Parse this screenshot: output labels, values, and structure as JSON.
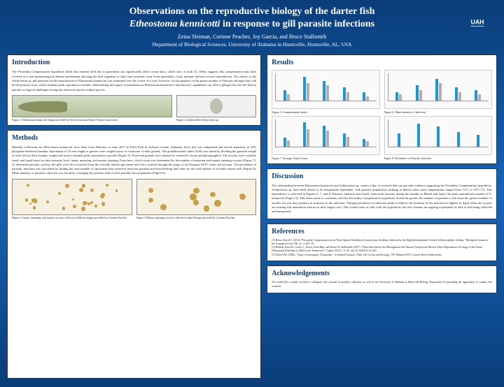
{
  "header": {
    "title_line1": "Observations on the reproductive biology of the darter fish",
    "title_species": "Etheostoma kennicotti",
    "title_line2_suffix": " in response to gill parasite infections",
    "authors": "Zeina Sleiman, Corinne Peacher, Joy Garcia, and Bruce Stallsmith",
    "dept": "Department of Biological Sciences, University of Alabama in Huntsville, Huntsville, AL, USA"
  },
  "intro": {
    "heading": "Introduction",
    "body": "The Fecundity Compensation hypothesis holds that nutrient theft due to parasitism can significantly affect ovum mass, clutch size, or both [1]. Heins suggests this compensation may have evolved as a non-immunological defense mechanism allowing the host organism to shift vital nutrients away from potentially costly immune defense toward reproduction. The effects of the Aethycteron sp. gill parasites on the reproduction of Etheostoma kennicotti was examined over the course of a year; however, for the purpose of this poster months of February through June will be the primary focus which includes peak reproductive months. Determining the impact of parasitism on Etheostoma kennicotti's reproductive capabilities can offer a glimpse into the life history and the ecological challenges facing this otherwise poorly studied species.",
    "fig1_caption": "Figure 1 Etheostoma kennicotti Image provided by North American Native Fishes Association",
    "fig2_caption": "Figure 2 Undescribed Aethycteron sp."
  },
  "methods": {
    "heading": "Methods",
    "body": "Monthly collections for Etheostoma kennicotti were done from February to June 2017 at Estill Fork in Jackson County, Alabama. Each fish was euthanized and stored separately in 10% phosphate-buffered formalin. Specimens of 25 mm length or greater were weighed prior to extraction of their gonads. The gonadosomatic index (GSI) was found by dividing the gonadal weight of each fish by their somatic weight and used to identify peak reproductive periods (Figure 5). Extracted gonads were cleaned of connective tissue and photographed. The oocytes were counted, sized, and typed based on their maturity level: latent, maturing, and mature ripening. From here, clutch count was determined by the number of maturing and mature ripening oocytes (Figure 7). To determine parasitic activity, the gills were first extracted from the sexually mature specimens and were counted through the usage of an Olympus SZX7 stereo microscope. The prevalence of parasitic infection was calculated by finding the total number of specimens that carried at least one parasite and then dividing that value by the total number of sexually mature fish (Figure 8). Mean intensity of parasitic infection was found by averaging the parasite load of each monthly host population (Figure 6).",
    "fig3_caption": "Figure 3 Latent, maturing, and mature oocytes collected in March Image provided by Corinne Peacher",
    "fig4_caption": "Figure 4 Mature ripening oocytes collected in April Image provided by Corinne Peacher"
  },
  "results": {
    "heading": "Results",
    "fig5": {
      "caption": "Figure 5: Gonadosomatic Index",
      "type": "bar",
      "categories": [
        "Feb",
        "Mar",
        "Apr",
        "May",
        "Jun"
      ],
      "series_a": [
        5,
        11,
        9,
        6,
        4
      ],
      "series_b": [
        3,
        8,
        7,
        4,
        2
      ],
      "color_a": "#2196d4",
      "color_b": "#b0b0b0",
      "ylim": [
        0,
        12
      ]
    },
    "fig6": {
      "caption": "Figure 6: Mean Intensity of Infection",
      "type": "bar",
      "categories": [
        "Feb",
        "Mar",
        "Apr",
        "May",
        "Jun"
      ],
      "series_a": [
        4,
        7,
        10,
        6,
        5
      ],
      "series_b": [
        3,
        5,
        8,
        4,
        3
      ],
      "color_a": "#2196d4",
      "color_b": "#b0b0b0",
      "ylim": [
        0,
        12
      ]
    },
    "fig7": {
      "caption": "Figure 7: Average Clutch Count",
      "type": "bar",
      "categories": [
        "Feb",
        "Mar",
        "Apr",
        "May",
        "Jun"
      ],
      "series_a": [
        20,
        55,
        48,
        30,
        18
      ],
      "series_b": [
        14,
        40,
        36,
        22,
        12
      ],
      "color_a": "#2196d4",
      "color_b": "#b0b0b0",
      "ylim": [
        0,
        60
      ]
    },
    "fig8": {
      "caption": "Figure 8: Prevalence of Parasitic Infection",
      "type": "bar",
      "categories": [
        "Feb",
        "Mar",
        "Apr",
        "May",
        "Jun"
      ],
      "series_a": [
        40,
        70,
        60,
        45,
        35
      ],
      "color_a": "#2196d4",
      "ylim": [
        0,
        80
      ]
    }
  },
  "discussion": {
    "heading": "Discussion",
    "body": "The relationship between Etheostoma kennicotti and Aethycteron sp. creates a line of research that can provide evidence supporting the Fecundity Compensation hypothesis. Aethycteron sp. have been shown to be temperature dependent, with parasite populations peaking in March when water temperatures ranged from 14°C to 20°C [3]. This dependence is reflected in Figures 6, 7, and 8. Parasitic intensity and clutch count both increase during the months of March and April, the peak reproductive months of E. kennicotti (Figure 5). This observation is consistent with the Fecundity Compensation hypothesis in that the greater the number of parasites a fish hosts the greater number of smaller oocytes they produce in response to the infection. Though prevalence of infection peaks in March, the intensity of the infection is highest in April when the oocytes are nearing full maturation and are at their largest size. This would seem at odds with the hypothesis, but this remains an ongoing experiment as data is still being collected and interpreted."
  },
  "refs": {
    "heading": "References",
    "r1": "[1] Heins, David C. (2012) \"Fecundity Compensation in the Three-Spined Stickleback Gasterosteus Aculeatus Infected by the Diphyllobothriidean Cestode Schistocephalus Solidus.\" Biological Journal of the Linnean Society 106, no. 4: 807–19.",
    "r2": "[2] Hollion, Kara M., Crissy L. Tarver, Sean Hipe, and Bruce W. Stallsmith. (2017). \"Does Infection by the Monogenean Gill Parasite Aethycteron Moorei Affect Reproductive Ecology of the Darter Etheostoma Flabellare in Mill Creek, Tennessee?\" Copeia 105 (1): 75–81. doi:10.1643/CE-16-403.",
    "r3": "[3] Olsen OW. (1980). \"Types of monogenic Trematodes.\" in Animal Parasites: Their Life Cycles and Ecology. 199. Mineola (NY): Courier Dover Publications."
  },
  "ack": {
    "heading": "Acknowledgements",
    "body": "We would like to thank our fellow colleagues who assisted in monthly collections as well as the University of Alabama at Huntsville Biology Department for providing the opportunity to conduct this research."
  },
  "colors": {
    "bg_top": "#0a3d7a",
    "bg_mid": "#1565b8",
    "panel_bg": "#ffffff",
    "heading_color": "#0a3d7a"
  },
  "oocyte_style": {
    "bg": "#f5f0e0",
    "dot_color": "#c9a04a",
    "dot_count_fig3": 28,
    "dot_count_fig4": 10
  }
}
